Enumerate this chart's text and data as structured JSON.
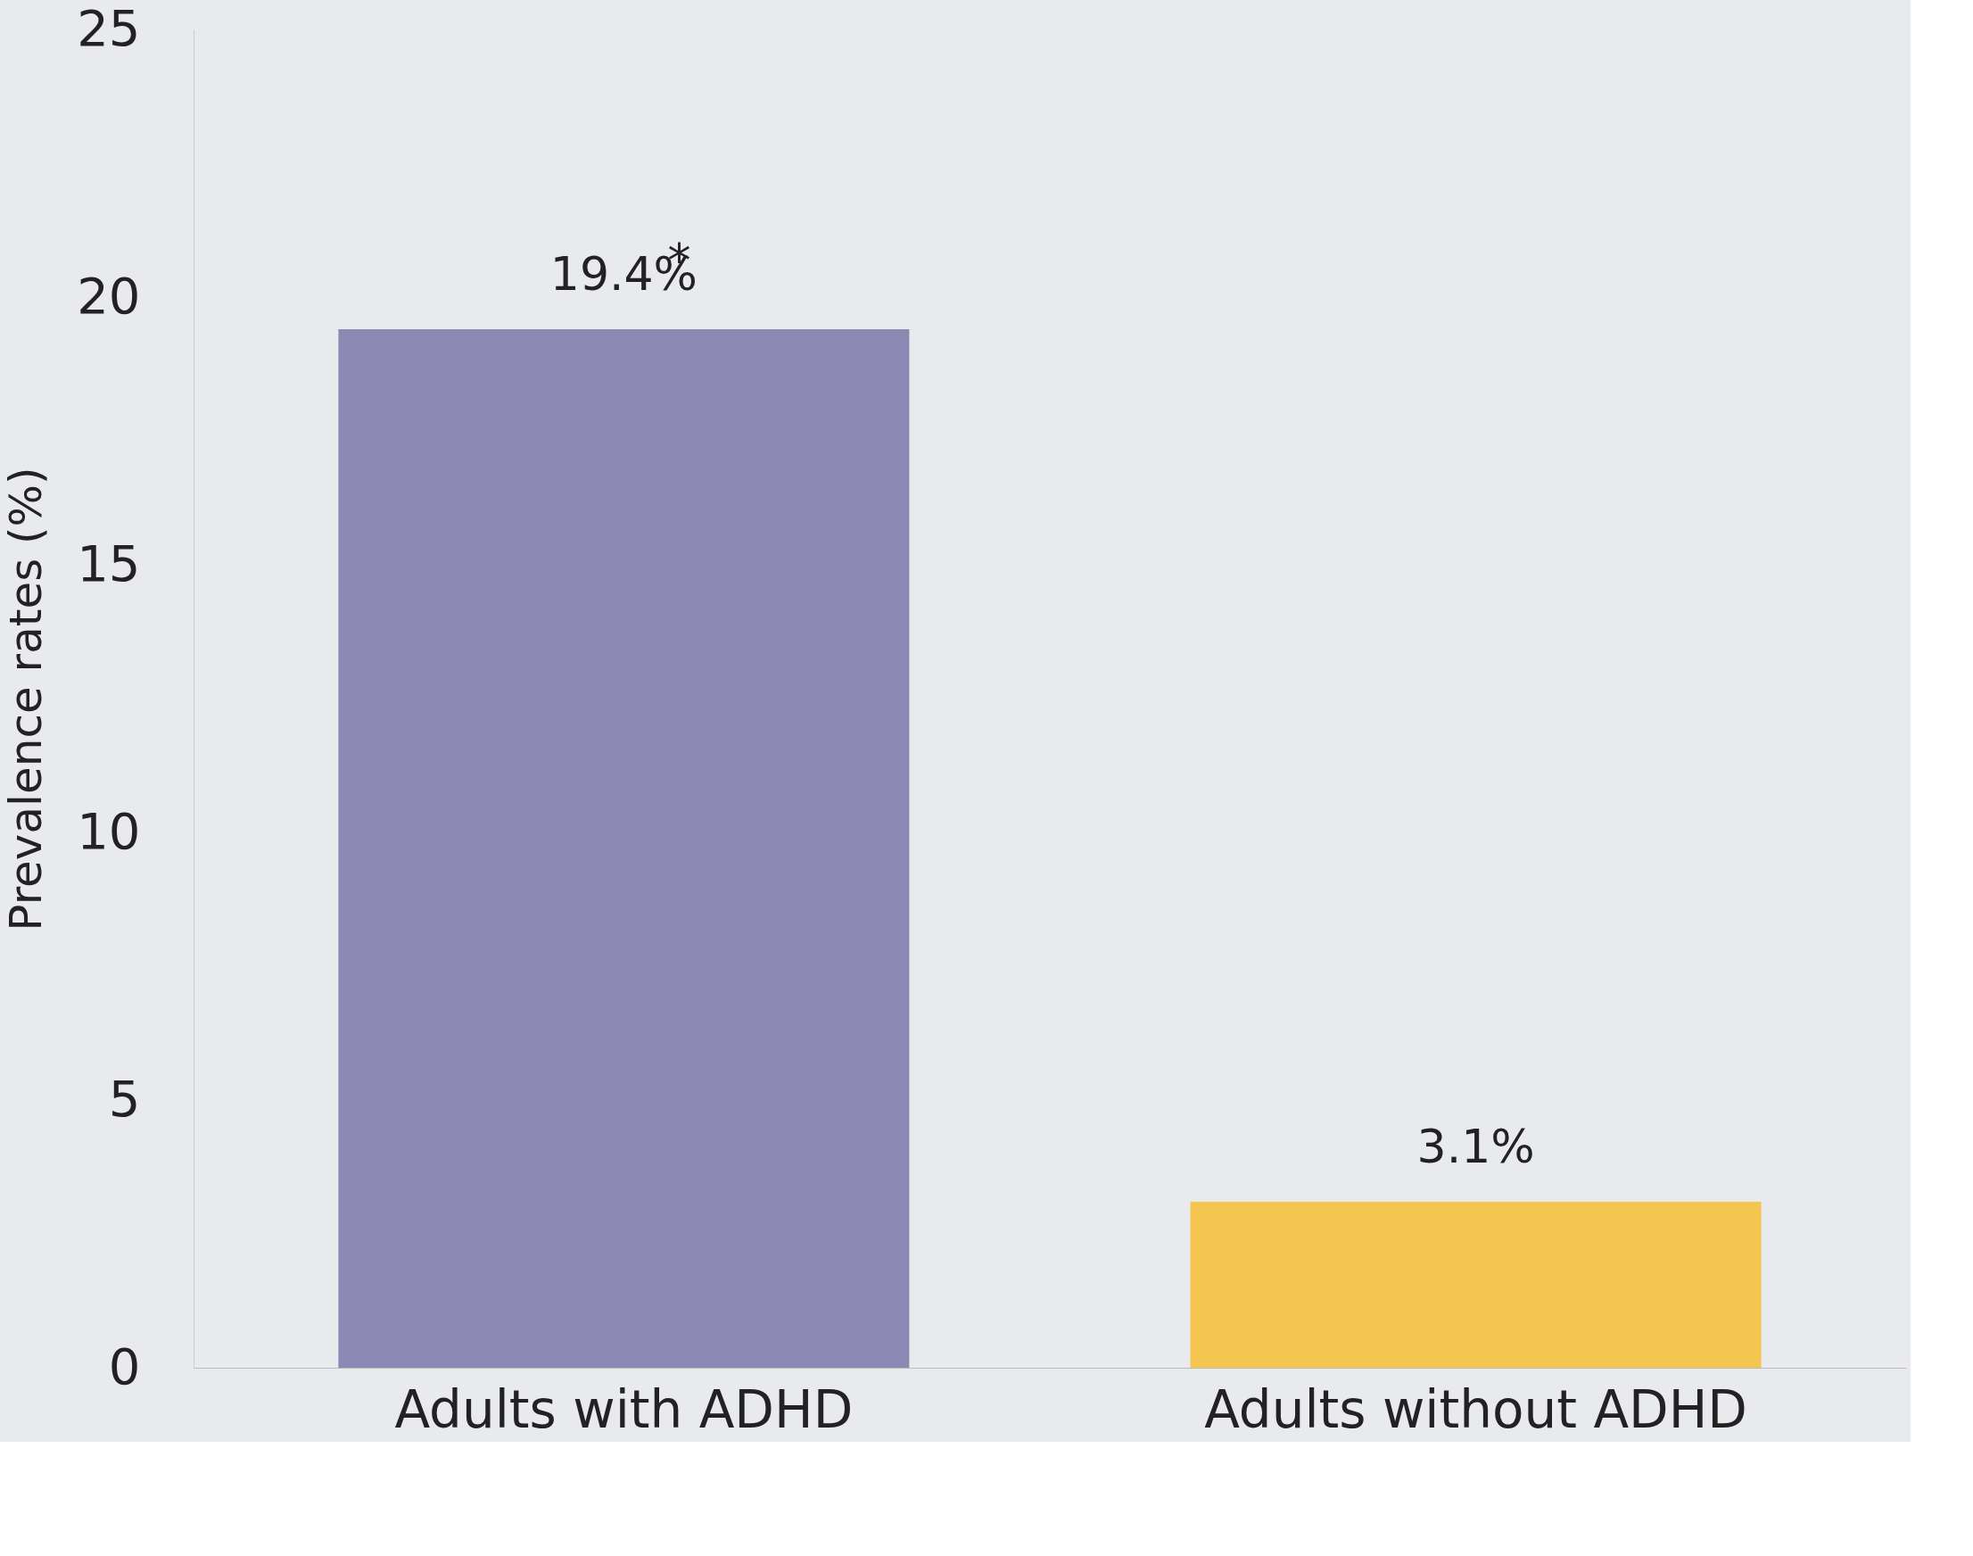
{
  "chart_data": {
    "type": "bar",
    "ylabel": "Prevalence rates (%)",
    "categories": [
      "Adults with ADHD",
      "Adults without ADHD"
    ],
    "values": [
      19.4,
      3.1
    ],
    "colors": [
      "#8b89b3",
      "#f4c54f"
    ],
    "value_labels": [
      "19.4%",
      "3.1%"
    ],
    "annotations": [
      {
        "text": "*",
        "x": "Adults with ADHD",
        "y": 19.4
      }
    ],
    "ylim": [
      0,
      25
    ],
    "yticks": [
      0,
      5,
      10,
      15,
      20,
      25
    ],
    "grid": false
  }
}
